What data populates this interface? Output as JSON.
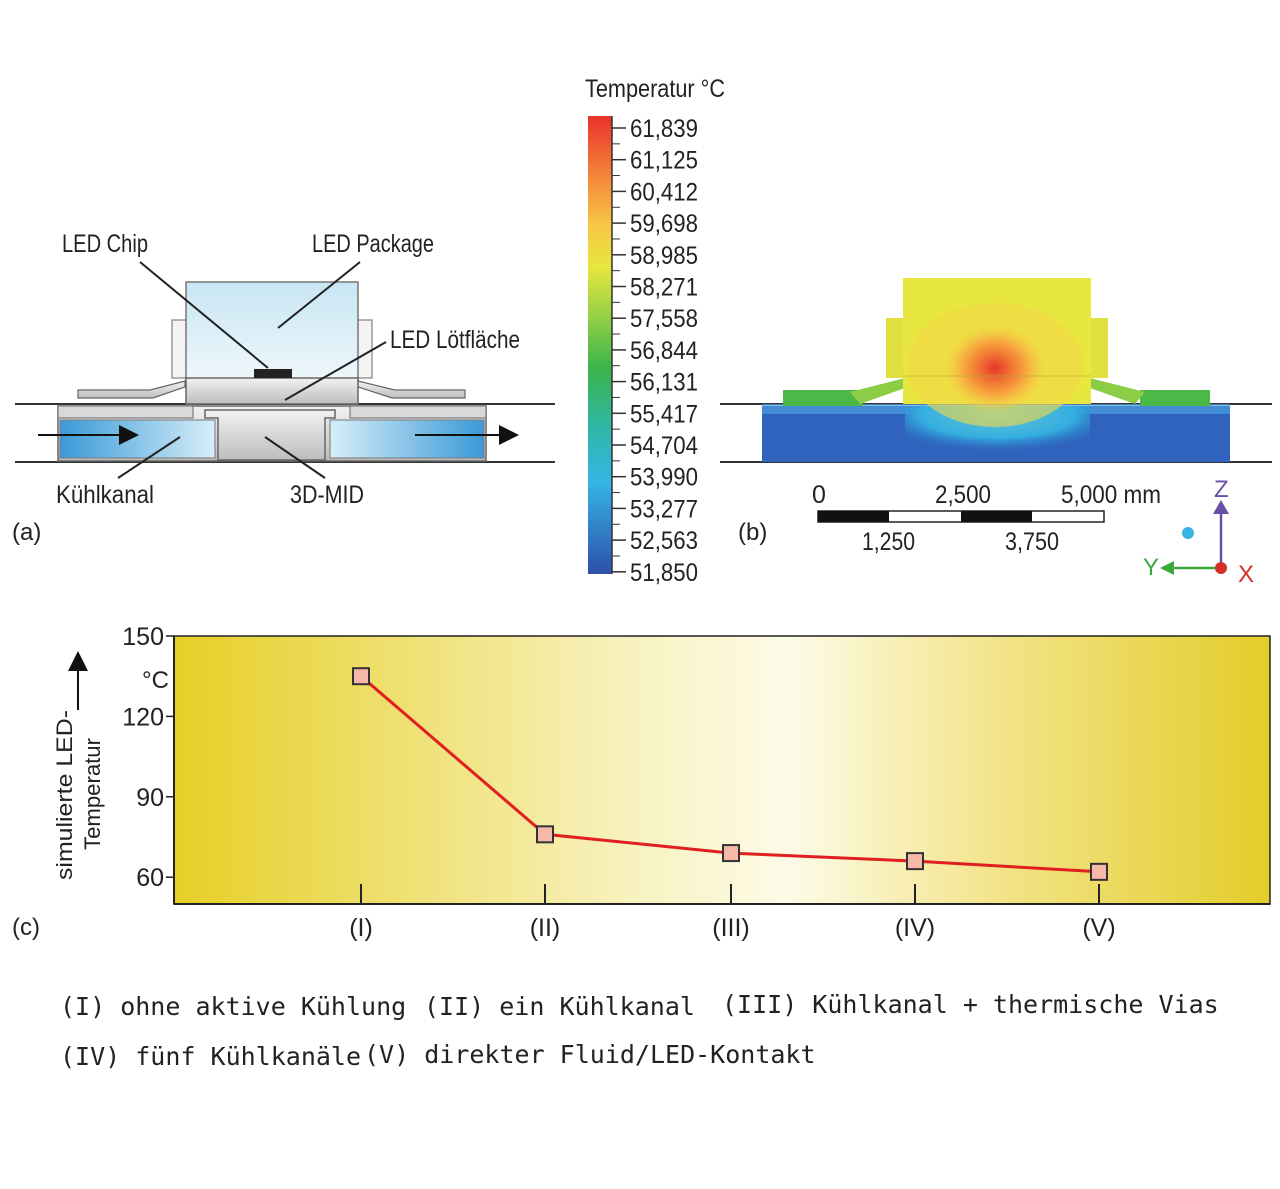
{
  "panel_a": {
    "tag": "(a)",
    "labels": {
      "chip": "LED Chip",
      "package": "LED Package",
      "pad": "LED Lötfläche",
      "channel": "Kühlkanal",
      "substrate": "3D-MID"
    }
  },
  "panel_b": {
    "tag": "(b)",
    "colorbar_title": "Temperatur °C",
    "colorbar_ticks": [
      "61,839",
      "61,125",
      "60,412",
      "59,698",
      "58,985",
      "58,271",
      "57,558",
      "56,844",
      "56,131",
      "55,417",
      "54,704",
      "53,990",
      "53,277",
      "52,563",
      "51,850"
    ],
    "scale_top": [
      "0",
      "2,500",
      "5,000 mm"
    ],
    "scale_bottom": [
      "1,250",
      "3,750"
    ],
    "axes": {
      "z": "Z",
      "y": "Y",
      "x": "X"
    },
    "colors": {
      "hot": "#e63a2a",
      "warm": "#f4a23a",
      "mid": "#e8e43a",
      "green": "#4cb848",
      "cool": "#37b6e2",
      "cold": "#2e5cb8"
    }
  },
  "panel_c": {
    "tag": "(c)"
  },
  "chart_data": {
    "type": "line",
    "categories": [
      "(I)",
      "(II)",
      "(III)",
      "(IV)",
      "(V)"
    ],
    "series": [
      {
        "values": [
          135,
          76,
          69,
          66,
          62
        ]
      }
    ],
    "ylabel": "simulierte LED-Temperatur",
    "yunit": "°C",
    "ylim": [
      50,
      150
    ],
    "yticks": [
      60,
      90,
      120,
      150
    ],
    "line_color": "#e02020",
    "marker_fill": "#f6b8a8",
    "background": "yellow-white gradient",
    "grid": false
  },
  "legend": [
    "(I) ohne aktive Kühlung",
    "(II) ein Kühlkanal",
    "(III) Kühlkanal + thermische Vias",
    "(IV) fünf Kühlkanäle",
    "(V) direkter Fluid/LED-Kontakt"
  ]
}
